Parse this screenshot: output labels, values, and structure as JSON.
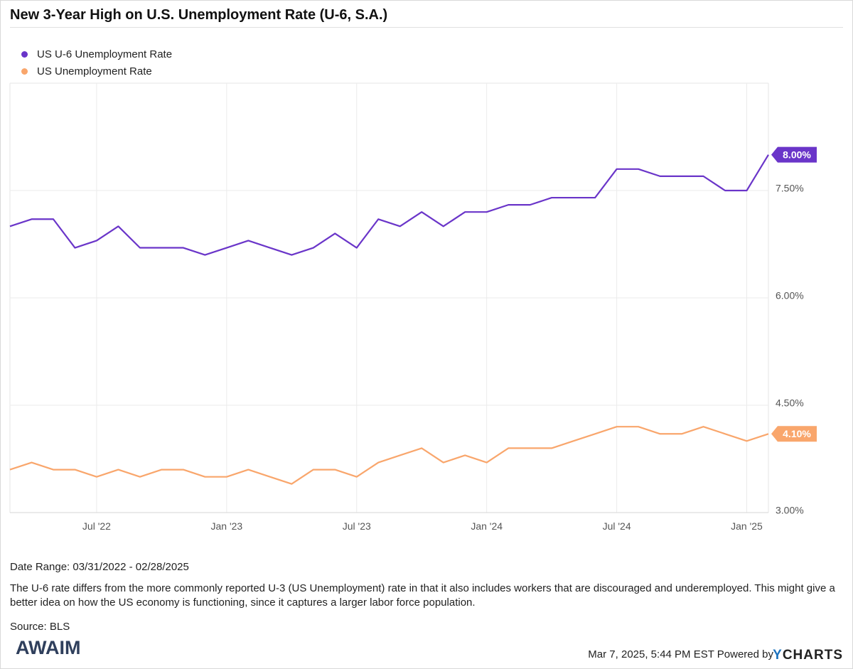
{
  "title": "New 3-Year High on U.S. Unemployment Rate (U-6, S.A.)",
  "legend": [
    {
      "label": "US U-6 Unemployment Rate",
      "color": "#6a35c9"
    },
    {
      "label": "US Unemployment Rate",
      "color": "#f9a66c"
    }
  ],
  "footer": {
    "date_range": "Date Range: 03/31/2022 - 02/28/2025",
    "description": "The U-6 rate differs from the more commonly reported U-3 (US Unemployment) rate in that it also includes workers that are discouraged and underemployed. This might give a better idea on how the US economy is functioning, since it captures a larger labor force population.",
    "source": "Source: BLS",
    "timestamp": "Mar 7, 2025, 5:44 PM EST Powered by",
    "brand_logo": "AWAIM",
    "powered_logo_y": "Y",
    "powered_logo_rest": "CHARTS"
  },
  "chart_data": {
    "type": "line",
    "title": "New 3-Year High on U.S. Unemployment Rate (U-6, S.A.)",
    "x_start": "2022-03",
    "x_end": "2025-02",
    "x": [
      "2022-03",
      "2022-04",
      "2022-05",
      "2022-06",
      "2022-07",
      "2022-08",
      "2022-09",
      "2022-10",
      "2022-11",
      "2022-12",
      "2023-01",
      "2023-02",
      "2023-03",
      "2023-04",
      "2023-05",
      "2023-06",
      "2023-07",
      "2023-08",
      "2023-09",
      "2023-10",
      "2023-11",
      "2023-12",
      "2024-01",
      "2024-02",
      "2024-03",
      "2024-04",
      "2024-05",
      "2024-06",
      "2024-07",
      "2024-08",
      "2024-09",
      "2024-10",
      "2024-11",
      "2024-12",
      "2025-01",
      "2025-02"
    ],
    "series": [
      {
        "name": "US U-6 Unemployment Rate",
        "color": "#6a35c9",
        "end_label": "8.00%",
        "values": [
          7.0,
          7.1,
          7.1,
          6.7,
          6.8,
          7.0,
          6.7,
          6.7,
          6.7,
          6.6,
          6.7,
          6.8,
          6.7,
          6.6,
          6.7,
          6.9,
          6.7,
          7.1,
          7.0,
          7.2,
          7.0,
          7.2,
          7.2,
          7.3,
          7.3,
          7.4,
          7.4,
          7.4,
          7.8,
          7.8,
          7.7,
          7.7,
          7.7,
          7.5,
          7.5,
          8.0
        ]
      },
      {
        "name": "US Unemployment Rate",
        "color": "#f9a66c",
        "end_label": "4.10%",
        "values": [
          3.6,
          3.7,
          3.6,
          3.6,
          3.5,
          3.6,
          3.5,
          3.6,
          3.6,
          3.5,
          3.5,
          3.6,
          3.5,
          3.4,
          3.6,
          3.6,
          3.5,
          3.7,
          3.8,
          3.9,
          3.7,
          3.8,
          3.7,
          3.9,
          3.9,
          3.9,
          4.0,
          4.1,
          4.2,
          4.2,
          4.1,
          4.1,
          4.2,
          4.1,
          4.0,
          4.1
        ]
      }
    ],
    "x_ticks": [
      {
        "label": "Jul '22",
        "x": "2022-07"
      },
      {
        "label": "Jan '23",
        "x": "2023-01"
      },
      {
        "label": "Jul '23",
        "x": "2023-07"
      },
      {
        "label": "Jan '24",
        "x": "2024-01"
      },
      {
        "label": "Jul '24",
        "x": "2024-07"
      },
      {
        "label": "Jan '25",
        "x": "2025-01"
      }
    ],
    "y_ticks": [
      {
        "label": "3.00%",
        "value": 3.0
      },
      {
        "label": "4.50%",
        "value": 4.5
      },
      {
        "label": "6.00%",
        "value": 6.0
      },
      {
        "label": "7.50%",
        "value": 7.5
      }
    ],
    "ylim": [
      3.0,
      9.0
    ],
    "y_axis_side": "right",
    "grid": true,
    "legend_position": "top-left"
  }
}
